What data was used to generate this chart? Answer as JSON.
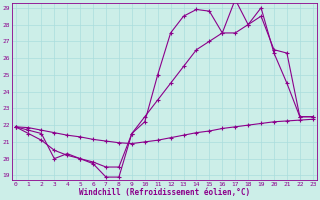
{
  "line1_x": [
    0,
    1,
    2,
    3,
    4,
    5,
    6,
    7,
    8,
    9,
    10,
    11,
    12,
    13,
    14,
    15,
    16,
    17,
    18,
    19,
    20,
    21,
    22,
    23
  ],
  "line1_y": [
    21.9,
    21.7,
    21.5,
    20.0,
    20.3,
    20.0,
    19.7,
    18.9,
    18.9,
    21.5,
    22.2,
    25.0,
    27.5,
    28.5,
    28.9,
    28.8,
    27.5,
    29.5,
    28.0,
    29.0,
    26.3,
    24.5,
    22.5,
    22.5
  ],
  "line2_x": [
    0,
    1,
    2,
    3,
    4,
    5,
    6,
    7,
    8,
    9,
    10,
    11,
    12,
    13,
    14,
    15,
    16,
    17,
    18,
    19,
    20,
    21,
    22,
    23
  ],
  "line2_y": [
    21.9,
    21.85,
    21.7,
    21.55,
    21.4,
    21.3,
    21.15,
    21.05,
    20.95,
    20.9,
    21.0,
    21.1,
    21.25,
    21.4,
    21.55,
    21.65,
    21.8,
    21.9,
    22.0,
    22.1,
    22.2,
    22.25,
    22.3,
    22.35
  ],
  "line3_x": [
    0,
    1,
    2,
    3,
    4,
    5,
    6,
    7,
    8,
    9,
    10,
    11,
    12,
    13,
    14,
    15,
    16,
    17,
    18,
    19,
    20,
    21,
    22,
    23
  ],
  "line3_y": [
    21.9,
    21.5,
    21.1,
    20.5,
    20.2,
    20.0,
    19.8,
    19.5,
    19.5,
    21.5,
    22.5,
    23.5,
    24.5,
    25.5,
    26.5,
    27.0,
    27.5,
    27.5,
    28.0,
    28.5,
    26.5,
    26.3,
    22.5,
    22.5
  ],
  "color": "#8b008b",
  "bg_color": "#cceee8",
  "grid_color": "#aadddd",
  "xlabel": "Windchill (Refroidissement éolien,°C)",
  "ylim_min": 19,
  "ylim_max": 29,
  "xlim_min": 0,
  "xlim_max": 23,
  "yticks": [
    19,
    20,
    21,
    22,
    23,
    24,
    25,
    26,
    27,
    28,
    29
  ],
  "xticks": [
    0,
    1,
    2,
    3,
    4,
    5,
    6,
    7,
    8,
    9,
    10,
    11,
    12,
    13,
    14,
    15,
    16,
    17,
    18,
    19,
    20,
    21,
    22,
    23
  ],
  "marker": "+",
  "markersize": 3,
  "linewidth": 0.8
}
